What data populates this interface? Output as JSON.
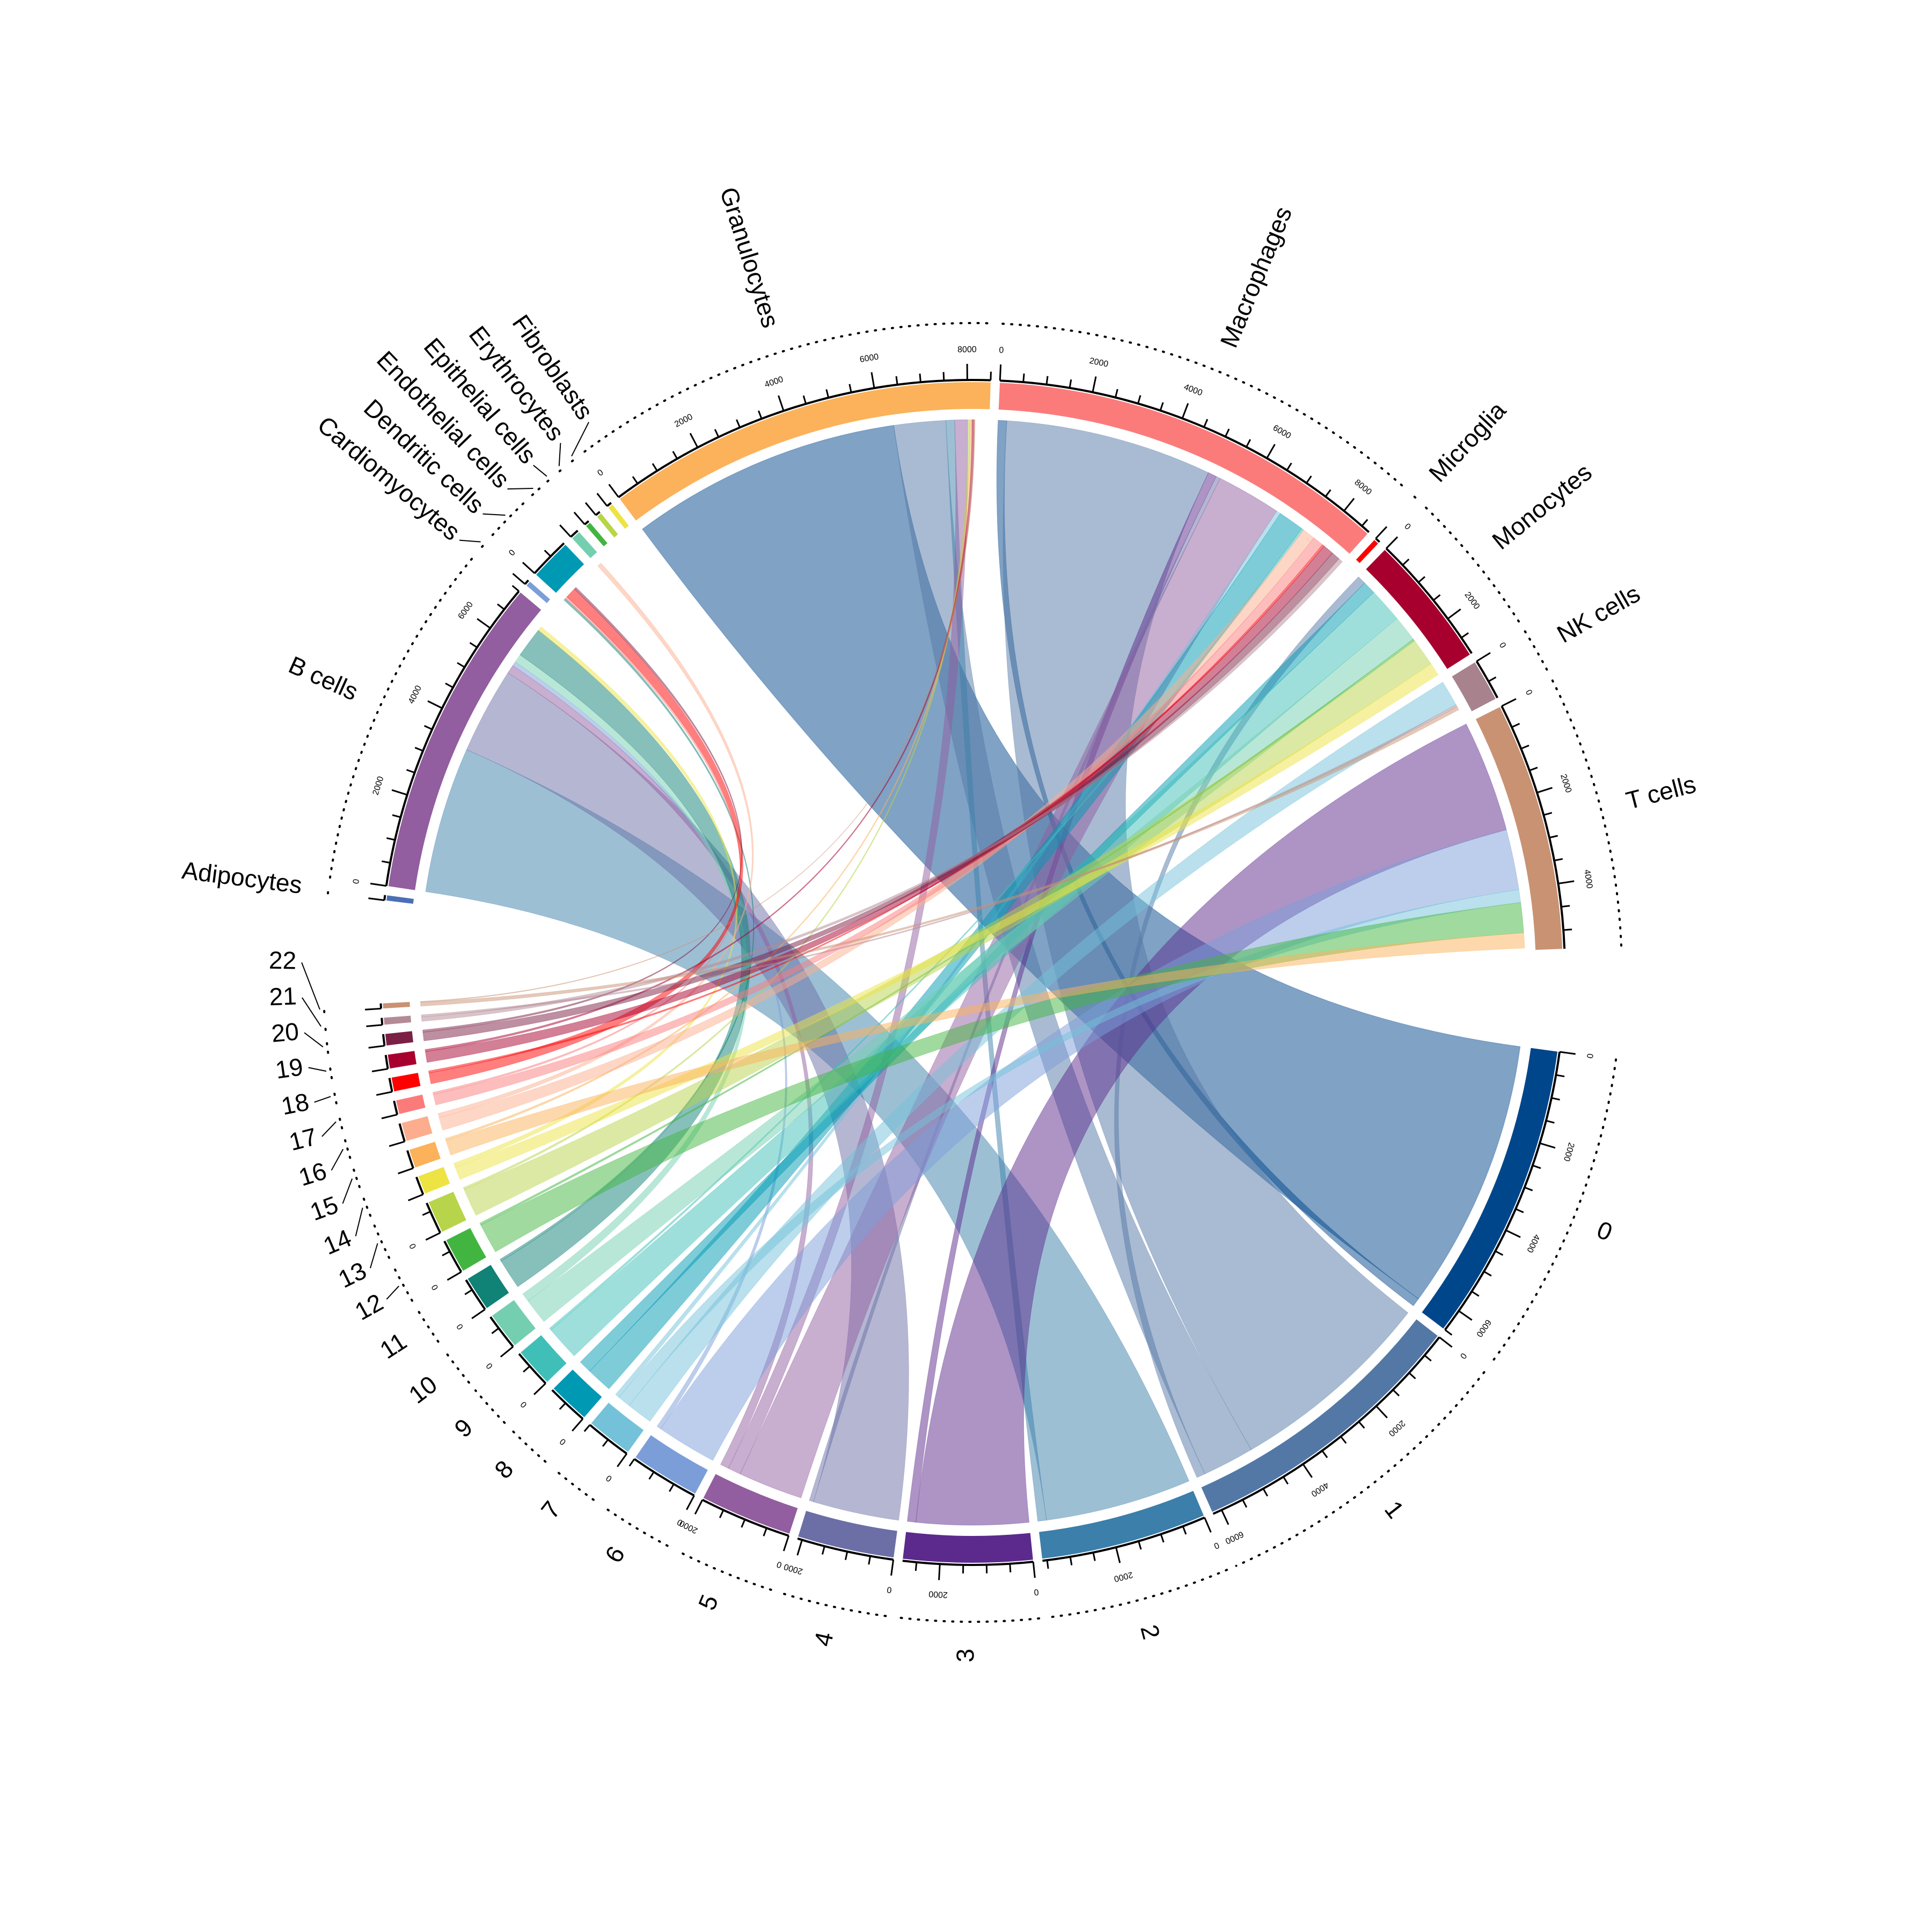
{
  "chart_data": {
    "type": "chord",
    "title": "",
    "major_tick_step": 2000,
    "minor_tick_step": 500,
    "link_alpha": 0.5,
    "groups": [
      {
        "name": "cell_types",
        "sectors": [
          {
            "label": "Adipocytes",
            "value": 30,
            "color": "#4a6fb5"
          },
          {
            "label": "B cells",
            "value": 7000,
            "color": "#925e9f"
          },
          {
            "label": "Cardiomyocytes",
            "value": 30,
            "color": "#7b9ed9"
          },
          {
            "label": "Dendritic cells",
            "value": 900,
            "color": "#0099b4"
          },
          {
            "label": "Endothelial cells",
            "value": 200,
            "color": "#74cfb0"
          },
          {
            "label": "Epithelial cells",
            "value": 20,
            "color": "#42b540"
          },
          {
            "label": "Erythrocytes",
            "value": 20,
            "color": "#b8d44a"
          },
          {
            "label": "Fibroblasts",
            "value": 30,
            "color": "#ede342"
          },
          {
            "label": "Granulocytes",
            "value": 8500,
            "color": "#fbb25a"
          },
          {
            "label": "Macrophages",
            "value": 8700,
            "color": "#fb7b7b"
          },
          {
            "label": "Microglia",
            "value": 50,
            "color": "#ff0000"
          },
          {
            "label": "Monocytes",
            "value": 2900,
            "color": "#a8002e"
          },
          {
            "label": "NK cells",
            "value": 900,
            "color": "#a8838e"
          },
          {
            "label": "T cells",
            "value": 5400,
            "color": "#c99273"
          }
        ]
      },
      {
        "name": "clusters",
        "sectors": [
          {
            "label": "0",
            "value": 6500,
            "color": "#00468b"
          },
          {
            "label": "1",
            "value": 6200,
            "color": "#5378a6"
          },
          {
            "label": "2",
            "value": 3600,
            "color": "#3b7faa"
          },
          {
            "label": "3",
            "value": 2800,
            "color": "#5b2a8c"
          },
          {
            "label": "4",
            "value": 2100,
            "color": "#6b6fa6"
          },
          {
            "label": "5",
            "value": 2000,
            "color": "#925e9f"
          },
          {
            "label": "6",
            "value": 1500,
            "color": "#7b9ed9"
          },
          {
            "label": "7",
            "value": 1000,
            "color": "#73c2d9"
          },
          {
            "label": "8",
            "value": 900,
            "color": "#0099b4"
          },
          {
            "label": "9",
            "value": 850,
            "color": "#40bfb8"
          },
          {
            "label": "10",
            "value": 800,
            "color": "#74cfb0"
          },
          {
            "label": "11",
            "value": 750,
            "color": "#108276"
          },
          {
            "label": "12",
            "value": 750,
            "color": "#42b540"
          },
          {
            "label": "13",
            "value": 700,
            "color": "#b8d44a"
          },
          {
            "label": "14",
            "value": 400,
            "color": "#ede342"
          },
          {
            "label": "15",
            "value": 400,
            "color": "#fbb25a"
          },
          {
            "label": "16",
            "value": 400,
            "color": "#fcad8e"
          },
          {
            "label": "17",
            "value": 300,
            "color": "#fb7b7b"
          },
          {
            "label": "18",
            "value": 300,
            "color": "#ff0000"
          },
          {
            "label": "19",
            "value": 300,
            "color": "#a8002e"
          },
          {
            "label": "20",
            "value": 250,
            "color": "#7b1f44"
          },
          {
            "label": "21",
            "value": 150,
            "color": "#b38a96"
          },
          {
            "label": "22",
            "value": 100,
            "color": "#c99273"
          }
        ]
      }
    ],
    "links": [
      [
        "0",
        "Granulocytes",
        6300
      ],
      [
        "0",
        "Macrophages",
        200
      ],
      [
        "1",
        "Macrophages",
        4800
      ],
      [
        "1",
        "Granulocytes",
        1200
      ],
      [
        "1",
        "Monocytes",
        200
      ],
      [
        "2",
        "B cells",
        3400
      ],
      [
        "2",
        "Granulocytes",
        200
      ],
      [
        "3",
        "T cells",
        2600
      ],
      [
        "3",
        "Macrophages",
        200
      ],
      [
        "4",
        "B cells",
        2000
      ],
      [
        "4",
        "Macrophages",
        100
      ],
      [
        "5",
        "Macrophages",
        1500
      ],
      [
        "5",
        "Granulocytes",
        300
      ],
      [
        "5",
        "B cells",
        200
      ],
      [
        "6",
        "T cells",
        1400
      ],
      [
        "6",
        "B cells",
        100
      ],
      [
        "7",
        "NK cells",
        600
      ],
      [
        "7",
        "T cells",
        300
      ],
      [
        "7",
        "Macrophages",
        100
      ],
      [
        "8",
        "Macrophages",
        600
      ],
      [
        "8",
        "Monocytes",
        300
      ],
      [
        "9",
        "Monocytes",
        800
      ],
      [
        "9",
        "Macrophages",
        50
      ],
      [
        "10",
        "Monocytes",
        600
      ],
      [
        "10",
        "B cells",
        200
      ],
      [
        "11",
        "B cells",
        700
      ],
      [
        "11",
        "Dendritic cells",
        50
      ],
      [
        "12",
        "T cells",
        700
      ],
      [
        "12",
        "Monocytes",
        50
      ],
      [
        "13",
        "Monocytes",
        650
      ],
      [
        "13",
        "Granulocytes",
        50
      ],
      [
        "14",
        "Monocytes",
        300
      ],
      [
        "14",
        "B cells",
        100
      ],
      [
        "15",
        "T cells",
        350
      ],
      [
        "15",
        "Granulocytes",
        50
      ],
      [
        "16",
        "Macrophages",
        300
      ],
      [
        "16",
        "Endothelial cells",
        100
      ],
      [
        "17",
        "Macrophages",
        250
      ],
      [
        "17",
        "Dendritic cells",
        50
      ],
      [
        "18",
        "Dendritic cells",
        250
      ],
      [
        "18",
        "Macrophages",
        50
      ],
      [
        "19",
        "Macrophages",
        250
      ],
      [
        "19",
        "Granulocytes",
        50
      ],
      [
        "20",
        "Macrophages",
        200
      ],
      [
        "20",
        "Dendritic cells",
        50
      ],
      [
        "21",
        "Macrophages",
        100
      ],
      [
        "21",
        "NK cells",
        50
      ],
      [
        "22",
        "NK cells",
        80
      ],
      [
        "22",
        "Granulocytes",
        20
      ]
    ]
  }
}
